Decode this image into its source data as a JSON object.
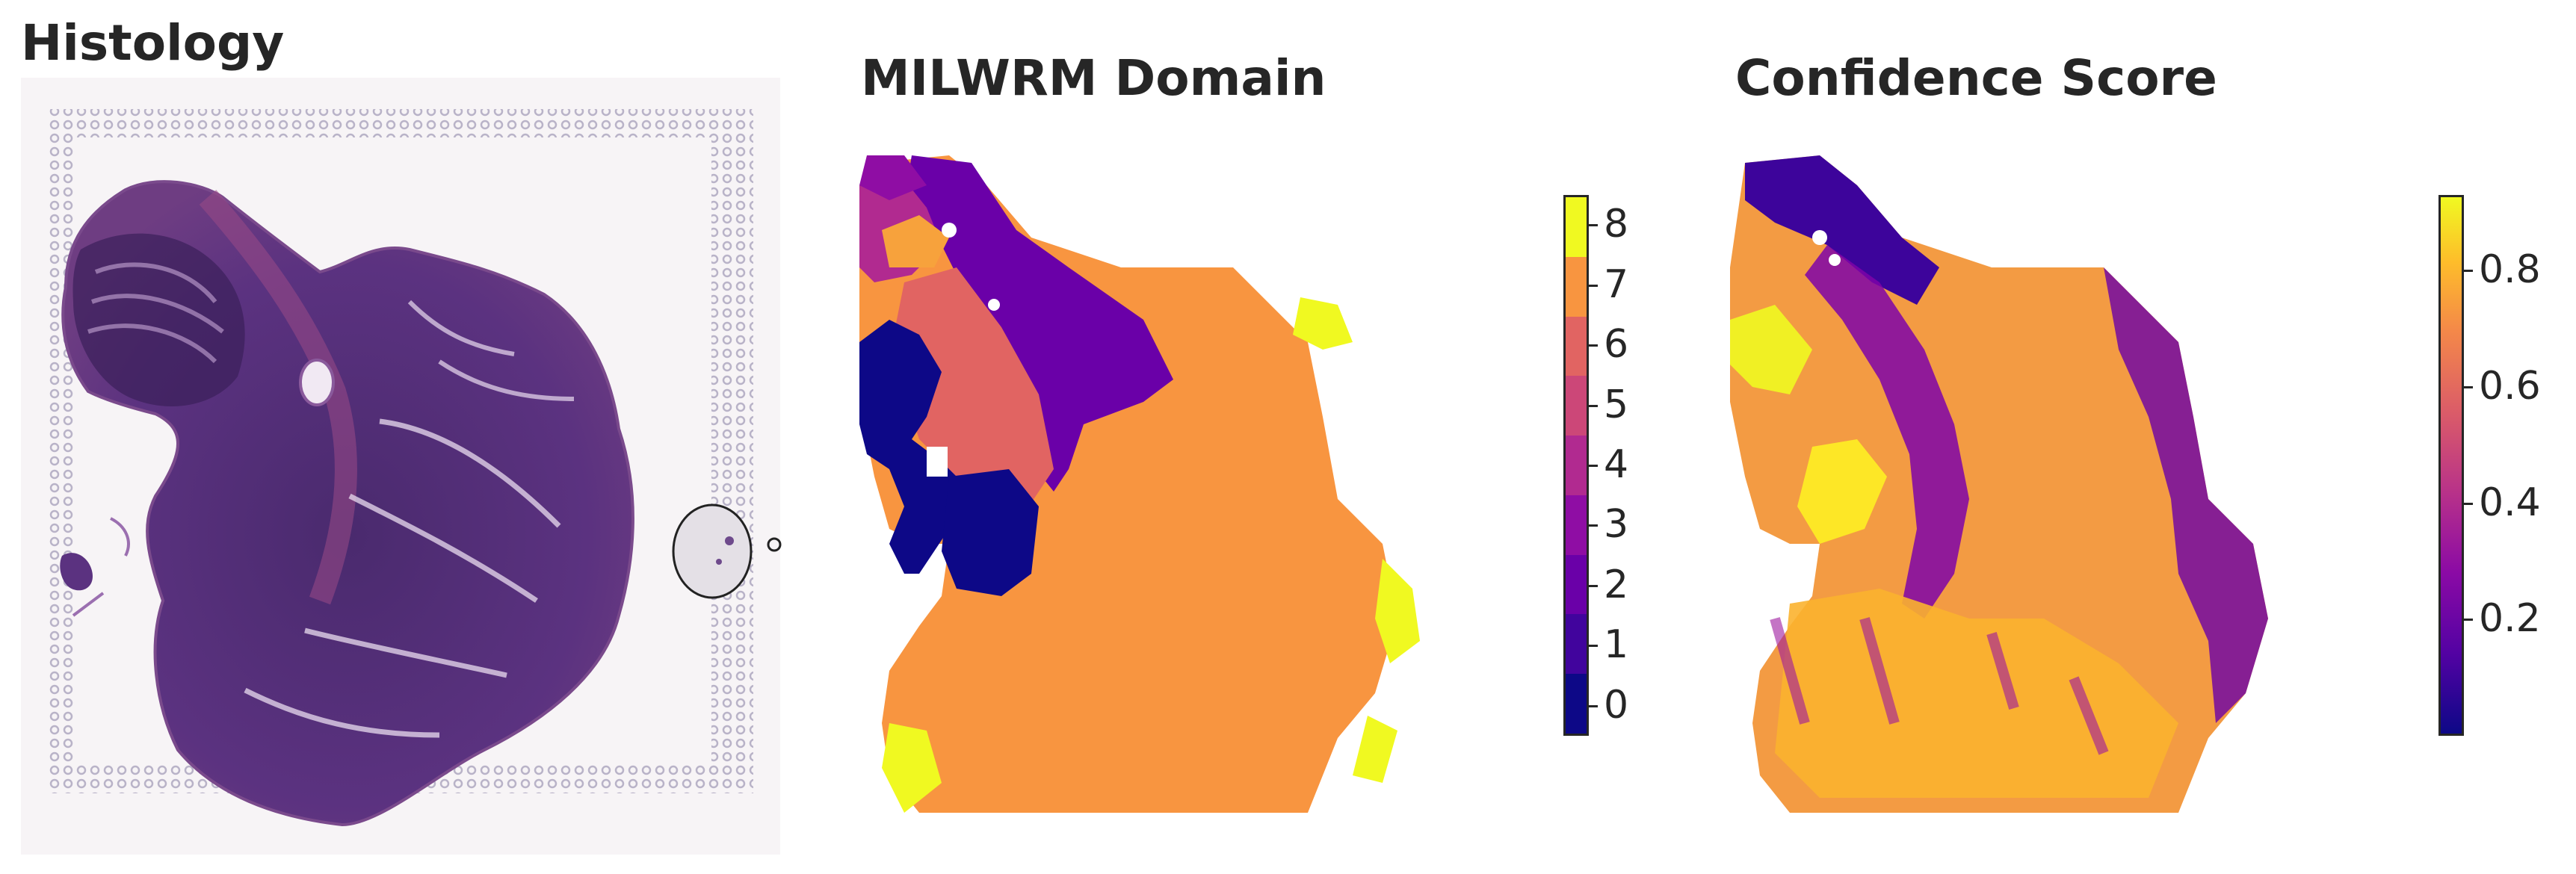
{
  "panels": {
    "histology": {
      "title": "Histology"
    },
    "domain": {
      "title": "MILWRM Domain"
    },
    "confidence": {
      "title": "Confidence Score"
    }
  },
  "colorbars": {
    "domain": {
      "ticks": [
        "0",
        "1",
        "2",
        "3",
        "4",
        "5",
        "6",
        "7",
        "8"
      ],
      "range": [
        -0.5,
        8.5
      ],
      "colors": [
        "#0d0887",
        "#41049d",
        "#6a00a8",
        "#8f0da4",
        "#b12a90",
        "#cc4778",
        "#e16462",
        "#f89540",
        "#f0f921"
      ],
      "note_colors": [
        "#1a0a8c",
        "#4c0a9e",
        "#7a0aa6",
        "#a326a0",
        "#c43c8c",
        "#df5a70",
        "#f0744e",
        "#f7a23c",
        "#f4ef2a"
      ]
    },
    "confidence": {
      "ticks": [
        "0.2",
        "0.4",
        "0.6",
        "0.8"
      ],
      "tick_values": [
        0.2,
        0.4,
        0.6,
        0.8
      ],
      "range": [
        0.0,
        0.93
      ],
      "colormap": "plasma"
    }
  }
}
